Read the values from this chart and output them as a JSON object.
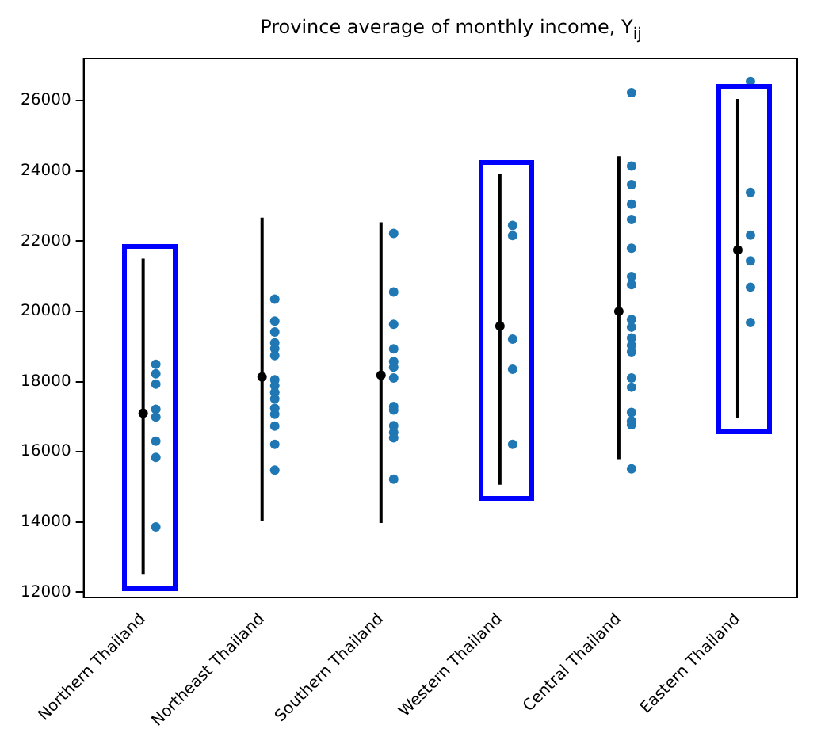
{
  "chart_data": {
    "type": "scatter",
    "title": "Province average of monthly income, Y$_{ij}$",
    "categories": [
      "Northern Thailand",
      "Northeast Thailand",
      "Southern Thailand",
      "Western Thailand",
      "Central Thailand",
      "Eastern Thailand"
    ],
    "ylim": [
      11850,
      27200
    ],
    "yticks": [
      12000,
      14000,
      16000,
      18000,
      20000,
      22000,
      24000,
      26000
    ],
    "grid": false,
    "legend": false,
    "marker": "circle",
    "series": [
      {
        "color": "#000000",
        "values": [
          17100,
          18130,
          18180,
          19580,
          20000,
          21750
        ],
        "errors": [
          [
            12500,
            21500
          ],
          [
            14030,
            22670
          ],
          [
            13970,
            22540
          ],
          [
            15060,
            23920
          ],
          [
            15790,
            24420
          ],
          [
            16950,
            26050
          ]
        ]
      },
      {
        "color": "#1f77b4",
        "x": [
          "Northern Thailand",
          "Northern Thailand",
          "Northern Thailand",
          "Northern Thailand",
          "Northern Thailand",
          "Northern Thailand",
          "Northern Thailand",
          "Northern Thailand",
          "Northeast Thailand",
          "Northeast Thailand",
          "Northeast Thailand",
          "Northeast Thailand",
          "Northeast Thailand",
          "Northeast Thailand",
          "Northeast Thailand",
          "Northeast Thailand",
          "Northeast Thailand",
          "Northeast Thailand",
          "Northeast Thailand",
          "Northeast Thailand",
          "Northeast Thailand",
          "Northeast Thailand",
          "Northeast Thailand",
          "Southern Thailand",
          "Southern Thailand",
          "Southern Thailand",
          "Southern Thailand",
          "Southern Thailand",
          "Southern Thailand",
          "Southern Thailand",
          "Southern Thailand",
          "Southern Thailand",
          "Southern Thailand",
          "Southern Thailand",
          "Southern Thailand",
          "Southern Thailand",
          "Western Thailand",
          "Western Thailand",
          "Western Thailand",
          "Western Thailand",
          "Western Thailand",
          "Central Thailand",
          "Central Thailand",
          "Central Thailand",
          "Central Thailand",
          "Central Thailand",
          "Central Thailand",
          "Central Thailand",
          "Central Thailand",
          "Central Thailand",
          "Central Thailand",
          "Central Thailand",
          "Central Thailand",
          "Central Thailand",
          "Central Thailand",
          "Central Thailand",
          "Central Thailand",
          "Central Thailand",
          "Central Thailand",
          "Central Thailand",
          "Eastern Thailand",
          "Eastern Thailand",
          "Eastern Thailand",
          "Eastern Thailand",
          "Eastern Thailand",
          "Eastern Thailand"
        ],
        "values": [
          18490,
          18220,
          17930,
          17210,
          16990,
          16300,
          15840,
          13860,
          20350,
          19720,
          19410,
          19100,
          18940,
          18740,
          18050,
          17880,
          17690,
          17510,
          17240,
          17070,
          16730,
          16210,
          15480,
          22220,
          20550,
          19630,
          18930,
          18570,
          18410,
          18100,
          17290,
          17190,
          16740,
          16550,
          16400,
          15220,
          22450,
          22160,
          19210,
          18350,
          16210,
          26230,
          24140,
          23610,
          23050,
          22620,
          21800,
          20990,
          20760,
          19770,
          19550,
          19240,
          19030,
          18850,
          18100,
          17840,
          17120,
          16880,
          16770,
          15510,
          26550,
          23390,
          22170,
          21440,
          20690,
          19680
        ]
      }
    ]
  }
}
